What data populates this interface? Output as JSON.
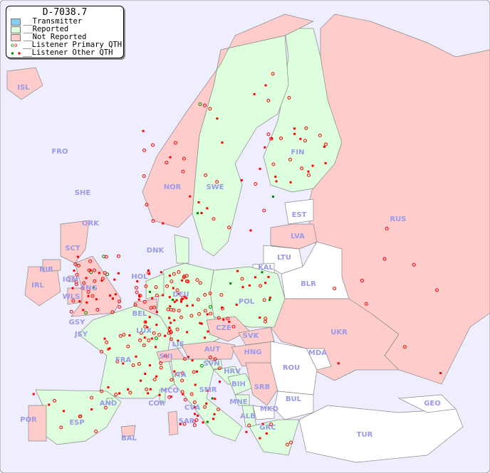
{
  "legend": {
    "title": "D-7038.7",
    "items": [
      {
        "label": "__Transmitter",
        "color": "#88ccee"
      },
      {
        "label": "__Reported",
        "color": "#ddffdd"
      },
      {
        "label": "__Not Reported",
        "color": "#ffcccc"
      },
      {
        "label": "__Listener Primary QTH",
        "symbol": "circle"
      },
      {
        "label": "__Listener Other QTH",
        "symbol": "square"
      }
    ]
  },
  "colors": {
    "sea": "#eeeeff",
    "reported": "#ddffdd",
    "not_reported": "#ffcccc",
    "no_data": "#ffffff",
    "label": "#9a9ae8",
    "listener": "#ff0000",
    "listener_alt": "#008800"
  },
  "countries": [
    {
      "code": "ISL",
      "status": "not_reported"
    },
    {
      "code": "FRO",
      "status": "none"
    },
    {
      "code": "SHE",
      "status": "none"
    },
    {
      "code": "ORK",
      "status": "none"
    },
    {
      "code": "NOR",
      "status": "not_reported"
    },
    {
      "code": "SWE",
      "status": "reported"
    },
    {
      "code": "FIN",
      "status": "reported"
    },
    {
      "code": "RUS",
      "status": "not_reported"
    },
    {
      "code": "EST",
      "status": "none"
    },
    {
      "code": "LVA",
      "status": "not_reported"
    },
    {
      "code": "LTU",
      "status": "none"
    },
    {
      "code": "KAL",
      "status": "none"
    },
    {
      "code": "BLR",
      "status": "none"
    },
    {
      "code": "DNK",
      "status": "reported"
    },
    {
      "code": "HOL",
      "status": "reported"
    },
    {
      "code": "IRL",
      "status": "not_reported"
    },
    {
      "code": "NIR",
      "status": "not_reported"
    },
    {
      "code": "SCT",
      "status": "not_reported"
    },
    {
      "code": "IOM",
      "status": "not_reported"
    },
    {
      "code": "WLS",
      "status": "not_reported"
    },
    {
      "code": "ENG",
      "status": "not_reported"
    },
    {
      "code": "DEU",
      "status": "reported"
    },
    {
      "code": "POL",
      "status": "reported"
    },
    {
      "code": "BEL",
      "status": "not_reported"
    },
    {
      "code": "LUX",
      "status": "reported"
    },
    {
      "code": "CZE",
      "status": "not_reported"
    },
    {
      "code": "SVK",
      "status": "not_reported"
    },
    {
      "code": "UKR",
      "status": "not_reported"
    },
    {
      "code": "MDA",
      "status": "none"
    },
    {
      "code": "HNG",
      "status": "not_reported"
    },
    {
      "code": "AUT",
      "status": "not_reported"
    },
    {
      "code": "SUI",
      "status": "not_reported"
    },
    {
      "code": "LIE",
      "status": "reported"
    },
    {
      "code": "FRA",
      "status": "reported"
    },
    {
      "code": "GSY",
      "status": "reported"
    },
    {
      "code": "JSY",
      "status": "reported"
    },
    {
      "code": "SVN",
      "status": "reported"
    },
    {
      "code": "HRV",
      "status": "reported"
    },
    {
      "code": "ROU",
      "status": "none"
    },
    {
      "code": "ITA",
      "status": "reported"
    },
    {
      "code": "BIH",
      "status": "reported"
    },
    {
      "code": "SRB",
      "status": "not_reported"
    },
    {
      "code": "MCO",
      "status": "reported"
    },
    {
      "code": "SMR",
      "status": "reported"
    },
    {
      "code": "COR",
      "status": "reported"
    },
    {
      "code": "CVA",
      "status": "reported"
    },
    {
      "code": "MNE",
      "status": "reported"
    },
    {
      "code": "BUL",
      "status": "none"
    },
    {
      "code": "GEO",
      "status": "none"
    },
    {
      "code": "AND",
      "status": "reported"
    },
    {
      "code": "ESP",
      "status": "reported"
    },
    {
      "code": "POR",
      "status": "not_reported"
    },
    {
      "code": "SAR",
      "status": "not_reported"
    },
    {
      "code": "ALB",
      "status": "reported"
    },
    {
      "code": "MKD",
      "status": "none"
    },
    {
      "code": "GRC",
      "status": "reported"
    },
    {
      "code": "TUR",
      "status": "none"
    },
    {
      "code": "BAL",
      "status": "not_reported"
    }
  ]
}
